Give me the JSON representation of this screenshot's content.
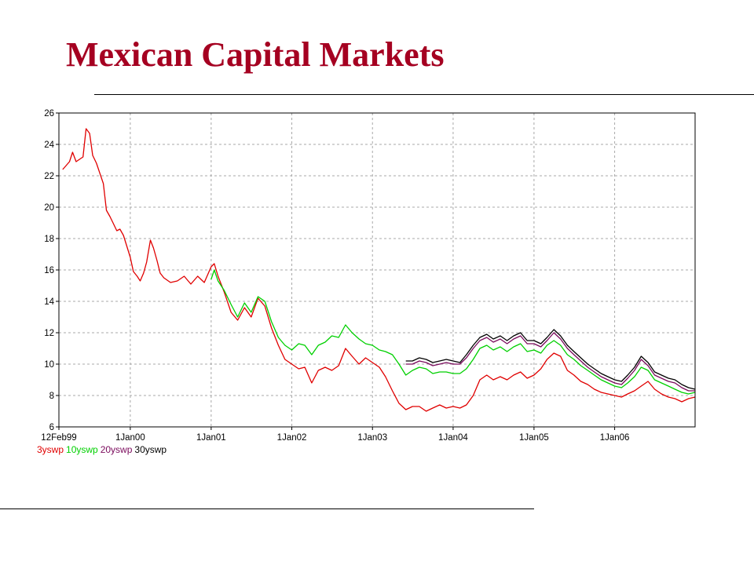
{
  "slide": {
    "title": "Mexican Capital Markets"
  },
  "chart_data": {
    "type": "line",
    "title": "",
    "xlabel": "",
    "ylabel": "",
    "ylim": [
      6,
      26
    ],
    "xlim": [
      "1999-02-12",
      "2006-12-31"
    ],
    "y_ticks": [
      6,
      8,
      10,
      12,
      14,
      16,
      18,
      20,
      22,
      24,
      26
    ],
    "x_ticks": [
      {
        "date": "1999-02-12",
        "label": "12Feb99"
      },
      {
        "date": "2000-01-01",
        "label": "1Jan00"
      },
      {
        "date": "2001-01-01",
        "label": "1Jan01"
      },
      {
        "date": "2002-01-01",
        "label": "1Jan02"
      },
      {
        "date": "2003-01-01",
        "label": "1Jan03"
      },
      {
        "date": "2004-01-01",
        "label": "1Jan04"
      },
      {
        "date": "2005-01-01",
        "label": "1Jan05"
      },
      {
        "date": "2006-01-01",
        "label": "1Jan06"
      }
    ],
    "grid": true,
    "legend_position": "bottom-left",
    "series": [
      {
        "name": "3yswp",
        "color": "#e00000",
        "points": [
          [
            "1999-03-01",
            22.4
          ],
          [
            "1999-04-01",
            22.9
          ],
          [
            "1999-04-15",
            23.5
          ],
          [
            "1999-05-01",
            22.9
          ],
          [
            "1999-06-01",
            23.2
          ],
          [
            "1999-06-15",
            25.0
          ],
          [
            "1999-07-01",
            24.7
          ],
          [
            "1999-07-15",
            23.3
          ],
          [
            "1999-08-01",
            22.8
          ],
          [
            "1999-09-01",
            21.5
          ],
          [
            "1999-09-15",
            19.8
          ],
          [
            "1999-10-01",
            19.4
          ],
          [
            "1999-10-15",
            19.0
          ],
          [
            "1999-11-01",
            18.5
          ],
          [
            "1999-11-15",
            18.6
          ],
          [
            "1999-12-01",
            18.2
          ],
          [
            "2000-01-01",
            16.8
          ],
          [
            "2000-01-15",
            15.9
          ],
          [
            "2000-02-01",
            15.6
          ],
          [
            "2000-02-15",
            15.3
          ],
          [
            "2000-03-01",
            15.8
          ],
          [
            "2000-03-15",
            16.5
          ],
          [
            "2000-04-01",
            17.9
          ],
          [
            "2000-04-15",
            17.4
          ],
          [
            "2000-05-01",
            16.6
          ],
          [
            "2000-05-15",
            15.8
          ],
          [
            "2000-06-01",
            15.5
          ],
          [
            "2000-07-01",
            15.2
          ],
          [
            "2000-08-01",
            15.3
          ],
          [
            "2000-09-01",
            15.6
          ],
          [
            "2000-10-01",
            15.1
          ],
          [
            "2000-11-01",
            15.6
          ],
          [
            "2000-12-01",
            15.2
          ],
          [
            "2001-01-01",
            16.2
          ],
          [
            "2001-01-15",
            16.4
          ],
          [
            "2001-02-01",
            15.6
          ],
          [
            "2001-03-01",
            14.6
          ],
          [
            "2001-04-01",
            13.3
          ],
          [
            "2001-05-01",
            12.8
          ],
          [
            "2001-06-01",
            13.6
          ],
          [
            "2001-07-01",
            13.0
          ],
          [
            "2001-08-01",
            14.2
          ],
          [
            "2001-09-01",
            13.7
          ],
          [
            "2001-10-01",
            12.3
          ],
          [
            "2001-11-01",
            11.2
          ],
          [
            "2001-12-01",
            10.3
          ],
          [
            "2002-01-01",
            10.0
          ],
          [
            "2002-02-01",
            9.7
          ],
          [
            "2002-03-01",
            9.8
          ],
          [
            "2002-04-01",
            8.8
          ],
          [
            "2002-05-01",
            9.6
          ],
          [
            "2002-06-01",
            9.8
          ],
          [
            "2002-07-01",
            9.6
          ],
          [
            "2002-08-01",
            9.9
          ],
          [
            "2002-09-01",
            11.0
          ],
          [
            "2002-10-01",
            10.5
          ],
          [
            "2002-11-01",
            10.0
          ],
          [
            "2002-12-01",
            10.4
          ],
          [
            "2003-01-01",
            10.1
          ],
          [
            "2003-02-01",
            9.8
          ],
          [
            "2003-03-01",
            9.2
          ],
          [
            "2003-04-01",
            8.3
          ],
          [
            "2003-05-01",
            7.5
          ],
          [
            "2003-06-01",
            7.1
          ],
          [
            "2003-07-01",
            7.3
          ],
          [
            "2003-08-01",
            7.3
          ],
          [
            "2003-09-01",
            7.0
          ],
          [
            "2003-10-01",
            7.2
          ],
          [
            "2003-11-01",
            7.4
          ],
          [
            "2003-12-01",
            7.2
          ],
          [
            "2004-01-01",
            7.3
          ],
          [
            "2004-02-01",
            7.2
          ],
          [
            "2004-03-01",
            7.4
          ],
          [
            "2004-04-01",
            8.0
          ],
          [
            "2004-05-01",
            9.0
          ],
          [
            "2004-06-01",
            9.3
          ],
          [
            "2004-07-01",
            9.0
          ],
          [
            "2004-08-01",
            9.2
          ],
          [
            "2004-09-01",
            9.0
          ],
          [
            "2004-10-01",
            9.3
          ],
          [
            "2004-11-01",
            9.5
          ],
          [
            "2004-12-01",
            9.1
          ],
          [
            "2005-01-01",
            9.3
          ],
          [
            "2005-02-01",
            9.7
          ],
          [
            "2005-03-01",
            10.3
          ],
          [
            "2005-04-01",
            10.7
          ],
          [
            "2005-05-01",
            10.5
          ],
          [
            "2005-06-01",
            9.6
          ],
          [
            "2005-07-01",
            9.3
          ],
          [
            "2005-08-01",
            8.9
          ],
          [
            "2005-09-01",
            8.7
          ],
          [
            "2005-10-01",
            8.4
          ],
          [
            "2005-11-01",
            8.2
          ],
          [
            "2005-12-01",
            8.1
          ],
          [
            "2006-01-01",
            8.0
          ],
          [
            "2006-02-01",
            7.9
          ],
          [
            "2006-03-01",
            8.1
          ],
          [
            "2006-04-01",
            8.3
          ],
          [
            "2006-05-01",
            8.6
          ],
          [
            "2006-06-01",
            8.9
          ],
          [
            "2006-07-01",
            8.4
          ],
          [
            "2006-08-01",
            8.1
          ],
          [
            "2006-09-01",
            7.9
          ],
          [
            "2006-10-01",
            7.8
          ],
          [
            "2006-11-01",
            7.6
          ],
          [
            "2006-12-01",
            7.8
          ],
          [
            "2006-12-31",
            7.9
          ]
        ]
      },
      {
        "name": "10yswp",
        "color": "#00d000",
        "points": [
          [
            "2001-01-01",
            15.4
          ],
          [
            "2001-01-15",
            16.0
          ],
          [
            "2001-02-01",
            15.3
          ],
          [
            "2001-03-01",
            14.7
          ],
          [
            "2001-04-01",
            13.8
          ],
          [
            "2001-05-01",
            13.0
          ],
          [
            "2001-06-01",
            13.9
          ],
          [
            "2001-07-01",
            13.3
          ],
          [
            "2001-08-01",
            14.3
          ],
          [
            "2001-09-01",
            14.0
          ],
          [
            "2001-10-01",
            12.7
          ],
          [
            "2001-11-01",
            11.7
          ],
          [
            "2001-12-01",
            11.2
          ],
          [
            "2002-01-01",
            10.9
          ],
          [
            "2002-02-01",
            11.3
          ],
          [
            "2002-03-01",
            11.2
          ],
          [
            "2002-04-01",
            10.6
          ],
          [
            "2002-05-01",
            11.2
          ],
          [
            "2002-06-01",
            11.4
          ],
          [
            "2002-07-01",
            11.8
          ],
          [
            "2002-08-01",
            11.7
          ],
          [
            "2002-09-01",
            12.5
          ],
          [
            "2002-10-01",
            12.0
          ],
          [
            "2002-11-01",
            11.6
          ],
          [
            "2002-12-01",
            11.3
          ],
          [
            "2003-01-01",
            11.2
          ],
          [
            "2003-02-01",
            10.9
          ],
          [
            "2003-03-01",
            10.8
          ],
          [
            "2003-04-01",
            10.6
          ],
          [
            "2003-05-01",
            10.0
          ],
          [
            "2003-06-01",
            9.3
          ],
          [
            "2003-07-01",
            9.6
          ],
          [
            "2003-08-01",
            9.8
          ],
          [
            "2003-09-01",
            9.7
          ],
          [
            "2003-10-01",
            9.4
          ],
          [
            "2003-11-01",
            9.5
          ],
          [
            "2003-12-01",
            9.5
          ],
          [
            "2004-01-01",
            9.4
          ],
          [
            "2004-02-01",
            9.4
          ],
          [
            "2004-03-01",
            9.7
          ],
          [
            "2004-04-01",
            10.3
          ],
          [
            "2004-05-01",
            11.0
          ],
          [
            "2004-06-01",
            11.2
          ],
          [
            "2004-07-01",
            10.9
          ],
          [
            "2004-08-01",
            11.1
          ],
          [
            "2004-09-01",
            10.8
          ],
          [
            "2004-10-01",
            11.1
          ],
          [
            "2004-11-01",
            11.3
          ],
          [
            "2004-12-01",
            10.8
          ],
          [
            "2005-01-01",
            10.9
          ],
          [
            "2005-02-01",
            10.7
          ],
          [
            "2005-03-01",
            11.2
          ],
          [
            "2005-04-01",
            11.5
          ],
          [
            "2005-05-01",
            11.2
          ],
          [
            "2005-06-01",
            10.6
          ],
          [
            "2005-07-01",
            10.3
          ],
          [
            "2005-08-01",
            9.9
          ],
          [
            "2005-09-01",
            9.6
          ],
          [
            "2005-10-01",
            9.3
          ],
          [
            "2005-11-01",
            9.0
          ],
          [
            "2005-12-01",
            8.8
          ],
          [
            "2006-01-01",
            8.6
          ],
          [
            "2006-02-01",
            8.5
          ],
          [
            "2006-03-01",
            8.8
          ],
          [
            "2006-04-01",
            9.2
          ],
          [
            "2006-05-01",
            9.8
          ],
          [
            "2006-06-01",
            9.6
          ],
          [
            "2006-07-01",
            9.0
          ],
          [
            "2006-08-01",
            8.8
          ],
          [
            "2006-09-01",
            8.6
          ],
          [
            "2006-10-01",
            8.4
          ],
          [
            "2006-11-01",
            8.2
          ],
          [
            "2006-12-01",
            8.1
          ],
          [
            "2006-12-31",
            8.2
          ]
        ]
      },
      {
        "name": "20yswp",
        "color": "#7a0a5c",
        "points": [
          [
            "2003-06-01",
            10.0
          ],
          [
            "2003-07-01",
            10.0
          ],
          [
            "2003-08-01",
            10.2
          ],
          [
            "2003-09-01",
            10.1
          ],
          [
            "2003-10-01",
            9.9
          ],
          [
            "2003-11-01",
            10.0
          ],
          [
            "2003-12-01",
            10.1
          ],
          [
            "2004-01-01",
            10.0
          ],
          [
            "2004-02-01",
            10.0
          ],
          [
            "2004-03-01",
            10.4
          ],
          [
            "2004-04-01",
            11.0
          ],
          [
            "2004-05-01",
            11.5
          ],
          [
            "2004-06-01",
            11.7
          ],
          [
            "2004-07-01",
            11.4
          ],
          [
            "2004-08-01",
            11.6
          ],
          [
            "2004-09-01",
            11.3
          ],
          [
            "2004-10-01",
            11.6
          ],
          [
            "2004-11-01",
            11.8
          ],
          [
            "2004-12-01",
            11.3
          ],
          [
            "2005-01-01",
            11.3
          ],
          [
            "2005-02-01",
            11.1
          ],
          [
            "2005-03-01",
            11.5
          ],
          [
            "2005-04-01",
            12.0
          ],
          [
            "2005-05-01",
            11.6
          ],
          [
            "2005-06-01",
            11.0
          ],
          [
            "2005-07-01",
            10.6
          ],
          [
            "2005-08-01",
            10.2
          ],
          [
            "2005-09-01",
            9.8
          ],
          [
            "2005-10-01",
            9.5
          ],
          [
            "2005-11-01",
            9.2
          ],
          [
            "2005-12-01",
            9.0
          ],
          [
            "2006-01-01",
            8.8
          ],
          [
            "2006-02-01",
            8.7
          ],
          [
            "2006-03-01",
            9.1
          ],
          [
            "2006-04-01",
            9.6
          ],
          [
            "2006-05-01",
            10.3
          ],
          [
            "2006-06-01",
            9.9
          ],
          [
            "2006-07-01",
            9.3
          ],
          [
            "2006-08-01",
            9.1
          ],
          [
            "2006-09-01",
            8.9
          ],
          [
            "2006-10-01",
            8.8
          ],
          [
            "2006-11-01",
            8.5
          ],
          [
            "2006-12-01",
            8.3
          ],
          [
            "2006-12-31",
            8.3
          ]
        ]
      },
      {
        "name": "30yswp",
        "color": "#000000",
        "points": [
          [
            "2003-06-01",
            10.2
          ],
          [
            "2003-07-01",
            10.2
          ],
          [
            "2003-08-01",
            10.4
          ],
          [
            "2003-09-01",
            10.3
          ],
          [
            "2003-10-01",
            10.1
          ],
          [
            "2003-11-01",
            10.2
          ],
          [
            "2003-12-01",
            10.3
          ],
          [
            "2004-01-01",
            10.2
          ],
          [
            "2004-02-01",
            10.1
          ],
          [
            "2004-03-01",
            10.6
          ],
          [
            "2004-04-01",
            11.2
          ],
          [
            "2004-05-01",
            11.7
          ],
          [
            "2004-06-01",
            11.9
          ],
          [
            "2004-07-01",
            11.6
          ],
          [
            "2004-08-01",
            11.8
          ],
          [
            "2004-09-01",
            11.5
          ],
          [
            "2004-10-01",
            11.8
          ],
          [
            "2004-11-01",
            12.0
          ],
          [
            "2004-12-01",
            11.5
          ],
          [
            "2005-01-01",
            11.5
          ],
          [
            "2005-02-01",
            11.3
          ],
          [
            "2005-03-01",
            11.7
          ],
          [
            "2005-04-01",
            12.2
          ],
          [
            "2005-05-01",
            11.8
          ],
          [
            "2005-06-01",
            11.2
          ],
          [
            "2005-07-01",
            10.8
          ],
          [
            "2005-08-01",
            10.4
          ],
          [
            "2005-09-01",
            10.0
          ],
          [
            "2005-10-01",
            9.7
          ],
          [
            "2005-11-01",
            9.4
          ],
          [
            "2005-12-01",
            9.2
          ],
          [
            "2006-01-01",
            9.0
          ],
          [
            "2006-02-01",
            8.9
          ],
          [
            "2006-03-01",
            9.3
          ],
          [
            "2006-04-01",
            9.8
          ],
          [
            "2006-05-01",
            10.5
          ],
          [
            "2006-06-01",
            10.1
          ],
          [
            "2006-07-01",
            9.5
          ],
          [
            "2006-08-01",
            9.3
          ],
          [
            "2006-09-01",
            9.1
          ],
          [
            "2006-10-01",
            9.0
          ],
          [
            "2006-11-01",
            8.7
          ],
          [
            "2006-12-01",
            8.5
          ],
          [
            "2006-12-31",
            8.4
          ]
        ]
      }
    ]
  }
}
